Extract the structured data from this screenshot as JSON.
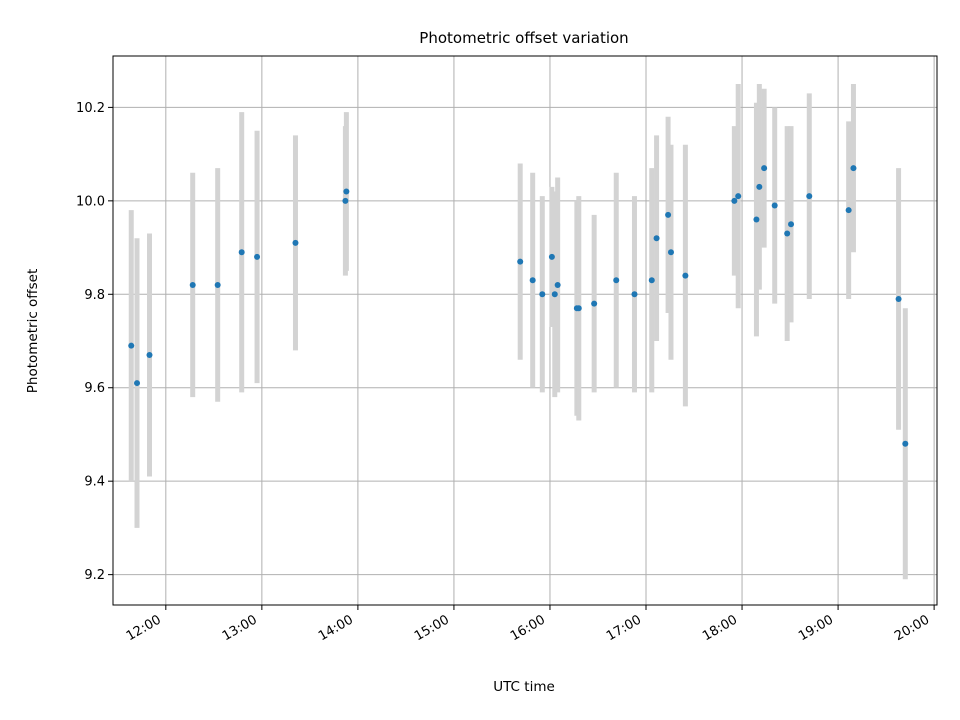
{
  "chart_data": {
    "type": "scatter",
    "title": "Photometric offset variation",
    "xlabel": "UTC time",
    "ylabel": "Photometric offset",
    "x_unit": "hour of day (UTC)",
    "xlim": [
      11.45,
      20.03
    ],
    "ylim": [
      9.135,
      10.31
    ],
    "xticks": [
      {
        "value": 12,
        "label": "12:00"
      },
      {
        "value": 13,
        "label": "13:00"
      },
      {
        "value": 14,
        "label": "14:00"
      },
      {
        "value": 15,
        "label": "15:00"
      },
      {
        "value": 16,
        "label": "16:00"
      },
      {
        "value": 17,
        "label": "17:00"
      },
      {
        "value": 18,
        "label": "18:00"
      },
      {
        "value": 19,
        "label": "19:00"
      },
      {
        "value": 20,
        "label": "20:00"
      }
    ],
    "yticks": [
      {
        "value": 9.2,
        "label": "9.2"
      },
      {
        "value": 9.4,
        "label": "9.4"
      },
      {
        "value": 9.6,
        "label": "9.6"
      },
      {
        "value": 9.8,
        "label": "9.8"
      },
      {
        "value": 10.0,
        "label": "10.0"
      },
      {
        "value": 10.2,
        "label": "10.2"
      }
    ],
    "grid": true,
    "marker_color": "#1f77b4",
    "errorbar_color": "#d3d3d3",
    "points": [
      {
        "x": 11.64,
        "y": 9.69,
        "err": 0.29
      },
      {
        "x": 11.7,
        "y": 9.61,
        "err": 0.31
      },
      {
        "x": 11.83,
        "y": 9.67,
        "err": 0.26
      },
      {
        "x": 12.28,
        "y": 9.82,
        "err": 0.24
      },
      {
        "x": 12.54,
        "y": 9.82,
        "err": 0.25
      },
      {
        "x": 12.79,
        "y": 9.89,
        "err": 0.3
      },
      {
        "x": 12.95,
        "y": 9.88,
        "err": 0.27
      },
      {
        "x": 13.35,
        "y": 9.91,
        "err": 0.23
      },
      {
        "x": 13.87,
        "y": 10.0,
        "err": 0.16
      },
      {
        "x": 13.88,
        "y": 10.02,
        "err": 0.17
      },
      {
        "x": 15.69,
        "y": 9.87,
        "err": 0.21
      },
      {
        "x": 15.82,
        "y": 9.83,
        "err": 0.23
      },
      {
        "x": 15.92,
        "y": 9.8,
        "err": 0.21
      },
      {
        "x": 16.02,
        "y": 9.88,
        "err": 0.15
      },
      {
        "x": 16.05,
        "y": 9.8,
        "err": 0.22
      },
      {
        "x": 16.08,
        "y": 9.82,
        "err": 0.23
      },
      {
        "x": 16.28,
        "y": 9.77,
        "err": 0.23
      },
      {
        "x": 16.3,
        "y": 9.77,
        "err": 0.24
      },
      {
        "x": 16.46,
        "y": 9.78,
        "err": 0.19
      },
      {
        "x": 16.69,
        "y": 9.83,
        "err": 0.23
      },
      {
        "x": 16.88,
        "y": 9.8,
        "err": 0.21
      },
      {
        "x": 17.06,
        "y": 9.83,
        "err": 0.24
      },
      {
        "x": 17.11,
        "y": 9.92,
        "err": 0.22
      },
      {
        "x": 17.23,
        "y": 9.97,
        "err": 0.21
      },
      {
        "x": 17.26,
        "y": 9.89,
        "err": 0.23
      },
      {
        "x": 17.41,
        "y": 9.84,
        "err": 0.28
      },
      {
        "x": 17.92,
        "y": 10.0,
        "err": 0.16
      },
      {
        "x": 17.96,
        "y": 10.01,
        "err": 0.24
      },
      {
        "x": 18.15,
        "y": 9.96,
        "err": 0.25
      },
      {
        "x": 18.18,
        "y": 10.03,
        "err": 0.22
      },
      {
        "x": 18.23,
        "y": 10.07,
        "err": 0.17
      },
      {
        "x": 18.34,
        "y": 9.99,
        "err": 0.21
      },
      {
        "x": 18.47,
        "y": 9.93,
        "err": 0.23
      },
      {
        "x": 18.51,
        "y": 9.95,
        "err": 0.21
      },
      {
        "x": 18.7,
        "y": 10.01,
        "err": 0.22
      },
      {
        "x": 19.11,
        "y": 9.98,
        "err": 0.19
      },
      {
        "x": 19.16,
        "y": 10.07,
        "err": 0.18
      },
      {
        "x": 19.63,
        "y": 9.79,
        "err": 0.28
      },
      {
        "x": 19.7,
        "y": 9.48,
        "err": 0.29
      }
    ]
  }
}
